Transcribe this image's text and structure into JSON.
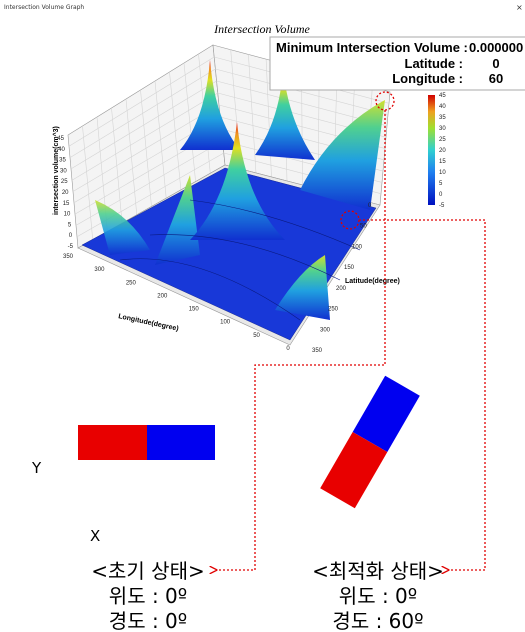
{
  "window": {
    "title": "Intersection Volume Graph",
    "close": "×"
  },
  "graph": {
    "title": "Intersection Volume",
    "z_axis_label": "intersection volume(cm^3)",
    "z_ticks": [
      45,
      40,
      35,
      30,
      25,
      20,
      15,
      10,
      5,
      0,
      -5
    ],
    "colorbar_ticks": [
      45,
      40,
      35,
      30,
      25,
      20,
      15,
      10,
      5,
      0,
      -5
    ],
    "longitude_label": "Longitude(degree)",
    "longitude_ticks": [
      350,
      300,
      250,
      200,
      150,
      100,
      50,
      0
    ],
    "latitude_label": "Latitude(degree)",
    "latitude_ticks": [
      0,
      50,
      100,
      150,
      200,
      250,
      300,
      350
    ]
  },
  "info_box": {
    "min_label": "Minimum Intersection Volume :",
    "min_value": "0.000000",
    "lat_label": "Latitude :",
    "lat_value": "0",
    "lon_label": "Longitude :",
    "lon_value": "60"
  },
  "axes": {
    "y": "Y",
    "x": "X"
  },
  "initial": {
    "title": "<초기 상태>",
    "lat": "위도 : 0º",
    "lon": "경도 : 0º"
  },
  "optimized": {
    "title": "<최적화 상태>",
    "lat": "위도 : 0º",
    "lon": "경도 : 60º"
  }
}
